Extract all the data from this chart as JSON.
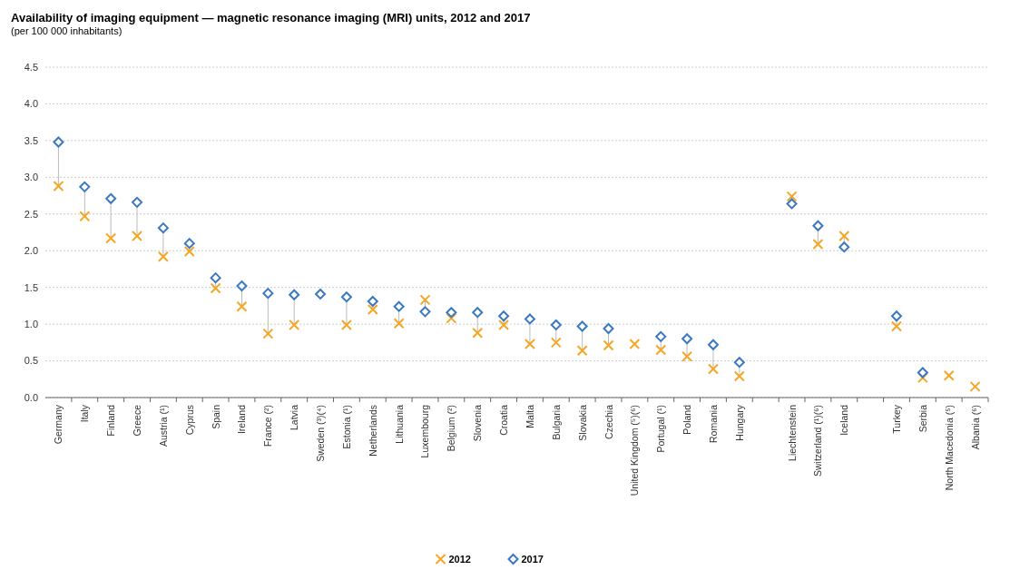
{
  "chart_data": {
    "type": "scatter",
    "title": "Availability of imaging equipment — magnetic resonance imaging (MRI) units, 2012 and 2017",
    "subtitle": "(per 100 000 inhabitants)",
    "categories": [
      "Germany",
      "Italy",
      "Finland",
      "Greece",
      "Austria (¹)",
      "Cyprus",
      "Spain",
      "Ireland",
      "France (²)",
      "Latvia",
      "Sweden (³)(⁴)",
      "Estonia (¹)",
      "Netherlands",
      "Lithuania",
      "Luxembourg",
      "Belgium (²)",
      "Slovenia",
      "Croatia",
      "Malta",
      "Bulgaria",
      "Slovakia",
      "Czechia",
      "United Kingdom (⁵)(⁶)",
      "Portugal (¹)",
      "Poland",
      "Romania",
      "Hungary",
      null,
      "Liechtenstein",
      "Switzerland (¹)(⁶)",
      "Iceland",
      null,
      "Turkey",
      "Serbia",
      "North Macedonia (⁵)",
      "Albania (⁶)"
    ],
    "series": [
      {
        "name": "2012",
        "color": "#f5a623",
        "marker": "cross",
        "values": [
          2.88,
          2.47,
          2.17,
          2.2,
          1.92,
          1.99,
          1.49,
          1.24,
          0.87,
          0.99,
          null,
          0.99,
          1.2,
          1.01,
          1.33,
          1.08,
          0.88,
          0.99,
          0.73,
          0.75,
          0.64,
          0.71,
          0.73,
          0.65,
          0.56,
          0.39,
          0.29,
          null,
          2.74,
          2.09,
          2.2,
          null,
          0.97,
          0.27,
          0.3,
          0.15
        ]
      },
      {
        "name": "2017",
        "color": "#3a78c2",
        "marker": "diamond",
        "values": [
          3.48,
          2.87,
          2.71,
          2.66,
          2.31,
          2.1,
          1.63,
          1.52,
          1.42,
          1.4,
          1.41,
          1.37,
          1.31,
          1.24,
          1.17,
          1.16,
          1.16,
          1.11,
          1.07,
          0.99,
          0.97,
          0.94,
          null,
          0.83,
          0.8,
          0.72,
          0.48,
          null,
          2.64,
          2.34,
          2.05,
          null,
          1.11,
          0.34,
          null,
          null
        ]
      }
    ],
    "ylim": [
      0,
      4.5
    ],
    "yticks": [
      {
        "value": 0,
        "label": "0.0"
      },
      {
        "value": 0.5,
        "label": "0.5"
      },
      {
        "value": 1,
        "label": "1.0"
      },
      {
        "value": 1.5,
        "label": "1.5"
      },
      {
        "value": 2,
        "label": "2.0"
      },
      {
        "value": 2.5,
        "label": "2.5"
      },
      {
        "value": 3,
        "label": "3.0"
      },
      {
        "value": 3.5,
        "label": "3.5"
      },
      {
        "value": 4,
        "label": "4.0"
      },
      {
        "value": 4.5,
        "label": "4.5"
      }
    ],
    "grid": "y",
    "legend": "bottom"
  }
}
